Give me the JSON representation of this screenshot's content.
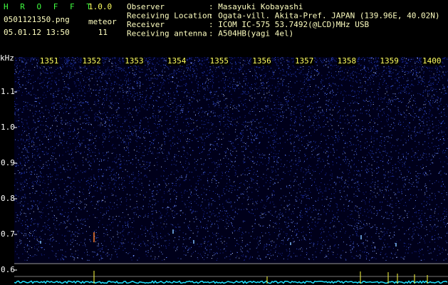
{
  "header": {
    "app_name": "H R O F F T",
    "version": "1.0.0",
    "file_name": "0501121350.png",
    "meteor_label": "meteor",
    "date_time": "05.01.12 13:50",
    "meteor_count": "11"
  },
  "info": [
    {
      "label": "Observer",
      "value": ": Masayuki Kobayashi"
    },
    {
      "label": "Receiving Location",
      "value": ": Ogata-vill. Akita-Pref. JAPAN (139.96E, 40.02N)"
    },
    {
      "label": "Receiver",
      "value": ": ICOM IC-575 53.7492(@LCD)MHz USB"
    },
    {
      "label": "Receiving antenna",
      "value": ": A504HB(yagi 4el)"
    }
  ],
  "spectrogram": {
    "unit": "kHz",
    "freq_labels": [
      "1.1",
      "1.0",
      "0.9",
      "0.8",
      "0.7",
      "0.6"
    ],
    "time_labels": [
      "1351",
      "1352",
      "1353",
      "1354",
      "1355",
      "1356",
      "1357",
      "1358",
      "1359",
      "1400"
    ]
  }
}
